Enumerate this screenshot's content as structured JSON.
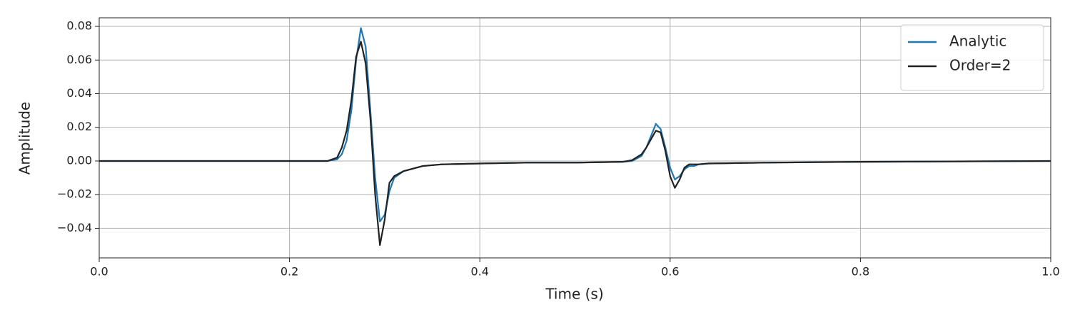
{
  "chart_data": {
    "type": "line",
    "xlabel": "Time (s)",
    "ylabel": "Amplitude",
    "x": [
      0,
      0.1,
      0.2,
      0.24,
      0.25,
      0.255,
      0.26,
      0.265,
      0.27,
      0.275,
      0.28,
      0.285,
      0.29,
      0.295,
      0.3,
      0.305,
      0.31,
      0.32,
      0.34,
      0.36,
      0.4,
      0.45,
      0.5,
      0.55,
      0.56,
      0.57,
      0.575,
      0.58,
      0.585,
      0.59,
      0.595,
      0.6,
      0.605,
      0.61,
      0.615,
      0.62,
      0.625,
      0.63,
      0.64,
      0.7,
      0.8,
      1.0
    ],
    "series": [
      {
        "name": "Analytic",
        "color": "#1f77b4",
        "values": [
          0,
          0,
          0,
          0,
          0.001,
          0.004,
          0.012,
          0.03,
          0.06,
          0.079,
          0.068,
          0.03,
          -0.01,
          -0.036,
          -0.032,
          -0.018,
          -0.01,
          -0.006,
          -0.003,
          -0.002,
          -0.0015,
          -0.001,
          -0.001,
          -0.0005,
          0,
          0.003,
          0.008,
          0.015,
          0.022,
          0.019,
          0.008,
          -0.004,
          -0.011,
          -0.009,
          -0.005,
          -0.003,
          -0.003,
          -0.002,
          -0.0015,
          -0.001,
          -0.0005,
          0
        ]
      },
      {
        "name": "Order=2",
        "color": "#222222",
        "values": [
          0,
          0,
          0,
          0,
          0.002,
          0.008,
          0.018,
          0.036,
          0.062,
          0.071,
          0.058,
          0.025,
          -0.02,
          -0.05,
          -0.035,
          -0.013,
          -0.009,
          -0.006,
          -0.003,
          -0.002,
          -0.0015,
          -0.001,
          -0.001,
          -0.0005,
          0.0005,
          0.004,
          0.008,
          0.013,
          0.018,
          0.017,
          0.006,
          -0.009,
          -0.016,
          -0.011,
          -0.004,
          -0.002,
          -0.002,
          -0.002,
          -0.0015,
          -0.001,
          -0.0005,
          0
        ]
      }
    ],
    "xlim": [
      0,
      1
    ],
    "xticks": [
      {
        "value": 0,
        "label": "0.0"
      },
      0.2,
      0.4,
      0.6,
      0.8,
      {
        "value": 1,
        "label": "1.0"
      }
    ],
    "ylim": [
      -0.0576,
      0.0851
    ],
    "yticks": [
      {
        "value": -0.04,
        "label": "−0.04"
      },
      {
        "value": -0.02,
        "label": "−0.02"
      },
      {
        "value": 0,
        "label": "0.00"
      },
      0.02,
      0.04,
      0.06,
      0.08
    ],
    "grid": true,
    "legend": "upper right"
  }
}
